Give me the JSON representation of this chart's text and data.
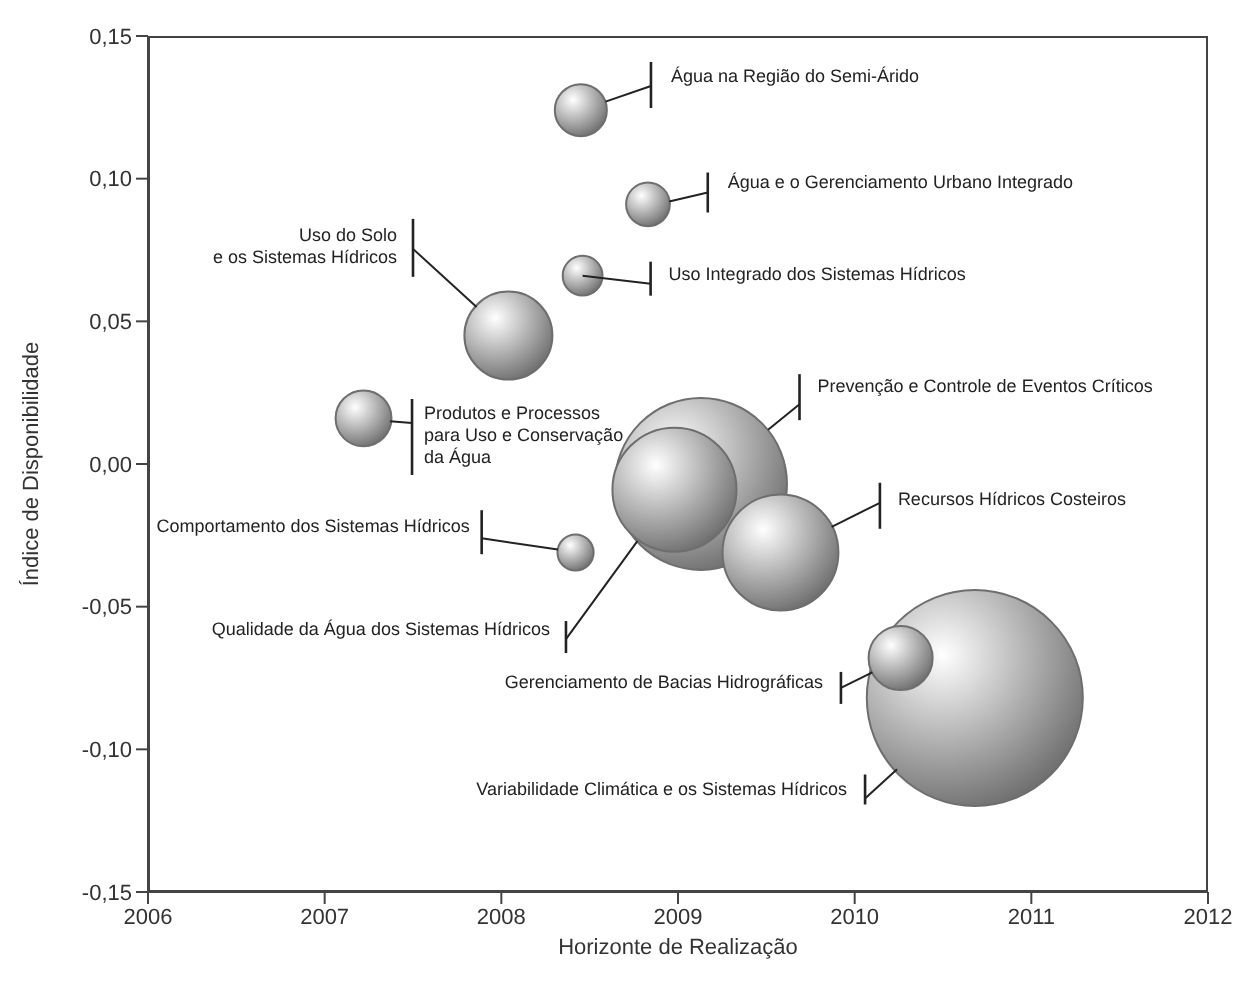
{
  "chart_data": {
    "type": "bubble",
    "xlabel": "Horizonte de Realização",
    "ylabel": "Índice de Disponibilidade",
    "x": [
      2008.45,
      2008.83,
      2008.46,
      2008.04,
      2007.22,
      2009.13,
      2008.98,
      2008.42,
      2009.58,
      2010.68,
      2010.26
    ],
    "values": [
      0.124,
      0.091,
      0.066,
      0.045,
      0.016,
      -0.007,
      -0.009,
      -0.031,
      -0.031,
      -0.082,
      -0.068
    ],
    "sizes": [
      0.058,
      0.041,
      0.034,
      0.166,
      0.067,
      0.634,
      0.33,
      0.028,
      0.288,
      1,
      0.088
    ],
    "color": "#6e6e6e",
    "xlim": [
      2006,
      2012
    ],
    "xticks": [
      2006,
      2007,
      2008,
      2009,
      2010,
      2011,
      2012
    ],
    "ylim": [
      -0.15,
      0.15
    ],
    "yticks": [
      {
        "value": -0.15,
        "label": "-0,15"
      },
      {
        "value": -0.1,
        "label": "-0,10"
      },
      {
        "value": -0.05,
        "label": "-0,05"
      },
      {
        "value": 0,
        "label": "0,00"
      },
      {
        "value": 0.05,
        "label": "0,05"
      },
      {
        "value": 0.1,
        "label": "0,10"
      },
      {
        "value": 0.15,
        "label": "0,15"
      }
    ],
    "grid": false,
    "legend": false,
    "annotations": [
      {
        "text": "Água na Região do Semi-Árido",
        "x": 2008.59,
        "y": 0.127
      },
      {
        "text": "Água e o Gerenciamento Urbano Integrado",
        "x": 2008.95,
        "y": 0.092
      },
      {
        "text": "Uso Integrado dos Sistemas Hídricos",
        "x": 2008.46,
        "y": 0.066
      },
      {
        "text": "Uso do Solo\ne os Sistemas Hídricos",
        "x": 2007.86,
        "y": 0.055
      },
      {
        "text": "Produtos e Processos\npara Uso e Conservação\nda Água",
        "x": 2007.37,
        "y": 0.015
      },
      {
        "text": "Prevenção e Controle de Eventos Críticos",
        "x": 2009.51,
        "y": 0.012
      },
      {
        "text": "Qualidade da Água dos Sistemas Hídricos",
        "x": 2008.77,
        "y": -0.027
      },
      {
        "text": "Comportamento dos Sistemas Hídricos",
        "x": 2008.32,
        "y": -0.03
      },
      {
        "text": "Recursos Hídricos Costeiros",
        "x": 2009.87,
        "y": -0.022
      },
      {
        "text": "Variabilidade Climática e os Sistemas Hídricos",
        "x": 2010.24,
        "y": -0.107
      },
      {
        "text": "Gerenciamento de Bacias Hidrográficas",
        "x": 2010.1,
        "y": -0.073
      }
    ]
  }
}
